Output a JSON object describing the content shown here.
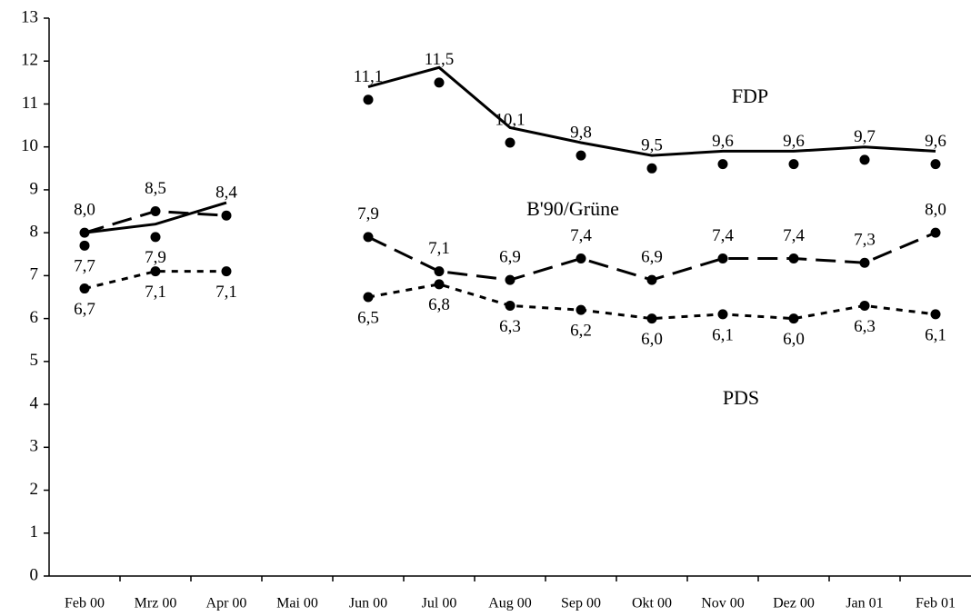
{
  "chart_data": {
    "type": "line",
    "categories": [
      "Feb 00",
      "Mrz 00",
      "Apr 00",
      "Mai 00",
      "Jun 00",
      "Jul 00",
      "Aug 00",
      "Sep 00",
      "Okt 00",
      "Nov 00",
      "Dez 00",
      "Jan 01",
      "Feb 01"
    ],
    "ylim": [
      0,
      13
    ],
    "yticks": [
      0,
      1,
      2,
      3,
      4,
      5,
      6,
      7,
      8,
      9,
      10,
      11,
      12,
      13
    ],
    "series": [
      {
        "name": "FDP",
        "color": "#000000",
        "values": [
          7.7,
          7.9,
          null,
          null,
          11.1,
          11.5,
          10.1,
          9.8,
          9.5,
          9.6,
          9.6,
          9.7,
          9.6
        ],
        "value_labels": [
          "7,7",
          "7,9",
          null,
          null,
          "11,1",
          "11,5",
          "10,1",
          "9,8",
          "9,5",
          "9,6",
          "9,6",
          "9,7",
          "9,6"
        ],
        "trend": [
          8.0,
          8.2,
          8.7,
          null,
          11.4,
          11.85,
          10.45,
          10.1,
          9.8,
          9.9,
          9.9,
          10.0,
          9.9
        ]
      },
      {
        "name": "B'90/Grüne",
        "color": "#000000",
        "values": [
          8.0,
          8.5,
          8.4,
          null,
          7.9,
          7.1,
          6.9,
          7.4,
          6.9,
          7.4,
          7.4,
          7.3,
          8.0
        ],
        "value_labels": [
          "8,0",
          "8,5",
          "8,4",
          null,
          "7,9",
          "7,1",
          "6,9",
          "7,4",
          "6,9",
          "7,4",
          "7,4",
          "7,3",
          "8,0"
        ]
      },
      {
        "name": "PDS",
        "color": "#000000",
        "values": [
          6.7,
          7.1,
          7.1,
          null,
          6.5,
          6.8,
          6.3,
          6.2,
          6.0,
          6.1,
          6.0,
          6.3,
          6.1
        ],
        "value_labels": [
          "6,7",
          "7,1",
          "7,1",
          null,
          "6,5",
          "6,8",
          "6,3",
          "6,2",
          "6,0",
          "6,1",
          "6,0",
          "6,3",
          "6,1"
        ]
      }
    ]
  }
}
